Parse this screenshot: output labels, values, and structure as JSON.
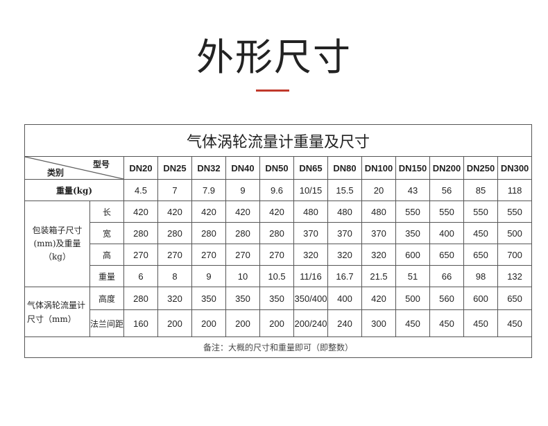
{
  "heading": "外形尺寸",
  "accent_color": "#c0392b",
  "table": {
    "title": "气体涡轮流量计重量及尺寸",
    "corner_top": "型号",
    "corner_bottom": "类别",
    "columns": [
      "DN20",
      "DN25",
      "DN32",
      "DN40",
      "DN50",
      "DN65",
      "DN80",
      "DN100",
      "DN150",
      "DN200",
      "DN250",
      "DN300"
    ],
    "weight_row": {
      "label": "重量(kg)",
      "values": [
        "4.5",
        "7",
        "7.9",
        "9",
        "9.6",
        "10/15",
        "15.5",
        "20",
        "43",
        "56",
        "85",
        "118"
      ]
    },
    "box_group": {
      "label": "包装箱子尺寸(mm)及重量（kg）",
      "rows": [
        {
          "label": "长",
          "values": [
            "420",
            "420",
            "420",
            "420",
            "420",
            "480",
            "480",
            "480",
            "550",
            "550",
            "550",
            "550"
          ]
        },
        {
          "label": "宽",
          "values": [
            "280",
            "280",
            "280",
            "280",
            "280",
            "370",
            "370",
            "370",
            "350",
            "400",
            "450",
            "500"
          ]
        },
        {
          "label": "高",
          "values": [
            "270",
            "270",
            "270",
            "270",
            "270",
            "320",
            "320",
            "320",
            "600",
            "650",
            "650",
            "700"
          ]
        },
        {
          "label": "重量",
          "values": [
            "6",
            "8",
            "9",
            "10",
            "10.5",
            "11/16",
            "16.7",
            "21.5",
            "51",
            "66",
            "98",
            "132"
          ]
        }
      ]
    },
    "meter_group": {
      "label": "气体涡轮流量计尺寸（mm）",
      "rows": [
        {
          "label": "高度",
          "values": [
            "280",
            "320",
            "350",
            "350",
            "350",
            "350/400",
            "400",
            "420",
            "500",
            "560",
            "600",
            "650"
          ]
        },
        {
          "label": "法兰间距",
          "values": [
            "160",
            "200",
            "200",
            "200",
            "200",
            "200/240",
            "240",
            "300",
            "450",
            "450",
            "450",
            "450"
          ]
        }
      ]
    },
    "note": "备注：大概的尺寸和重量即可（即整数）"
  }
}
